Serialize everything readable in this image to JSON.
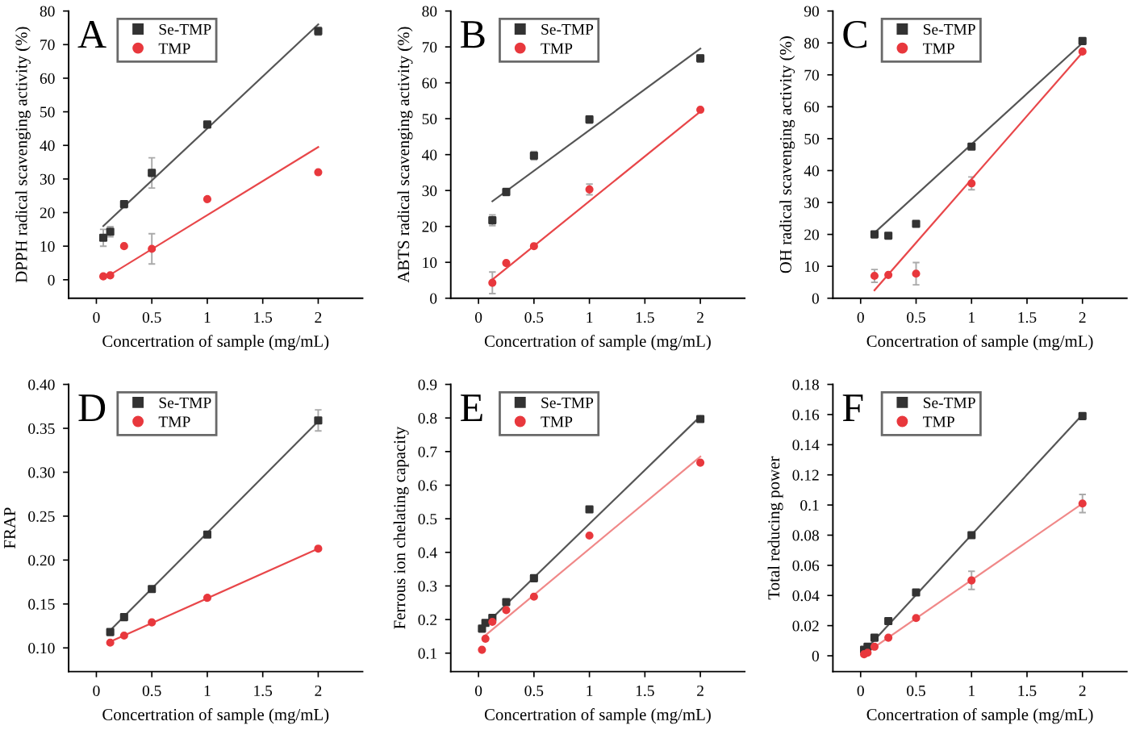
{
  "chart_data": [
    {
      "type": "scatter",
      "title": "A",
      "xlabel": "Concertration of sample (mg/mL)",
      "ylabel": "DPPH radical scavenging activity (%)",
      "xlim": [
        -0.25,
        2.4
      ],
      "xticks": [
        0,
        0.5,
        1,
        1.5,
        2
      ],
      "ylim": [
        -5.5,
        80
      ],
      "yticks": [
        0,
        10,
        20,
        30,
        40,
        50,
        60,
        70,
        80
      ],
      "legend": "top left",
      "grid": false,
      "series": [
        {
          "name": "Se-TMP",
          "marker": "square",
          "color": "#333333",
          "x": [
            0.0625,
            0.125,
            0.25,
            0.5,
            1,
            2
          ],
          "values": [
            12.5,
            14.3,
            22.5,
            31.8,
            46.2,
            74
          ],
          "errors": [
            2.5,
            1.5,
            1,
            4.5,
            null,
            1.2
          ]
        },
        {
          "name": "TMP",
          "marker": "circle",
          "color": "#e8383d",
          "x": [
            0.0625,
            0.125,
            0.25,
            0.5,
            1,
            2
          ],
          "values": [
            1,
            1.3,
            10,
            9.2,
            24,
            32
          ],
          "errors": [
            null,
            null,
            null,
            4.5,
            null,
            null
          ]
        },
        {
          "type": "line",
          "marker": "none",
          "color": "#555555",
          "x": [
            0.0625,
            2
          ],
          "values": [
            16,
            76
          ]
        },
        {
          "type": "line",
          "marker": "none",
          "color": "#e8474a",
          "x": [
            0.125,
            2
          ],
          "values": [
            1.5,
            39.5
          ]
        }
      ]
    },
    {
      "type": "scatter",
      "title": "B",
      "xlabel": "Concertration of sample (mg/mL)",
      "ylabel": "ABTS radical scavenging activity (%)",
      "xlim": [
        -0.25,
        2.4
      ],
      "xticks": [
        0,
        0.5,
        1,
        1.5,
        2
      ],
      "ylim": [
        0,
        80
      ],
      "yticks": [
        0,
        10,
        20,
        30,
        40,
        50,
        60,
        70,
        80
      ],
      "legend": "top left",
      "grid": false,
      "series": [
        {
          "name": "Se-TMP",
          "marker": "square",
          "color": "#333333",
          "x": [
            0.125,
            0.25,
            0.5,
            1,
            2
          ],
          "values": [
            21.7,
            29.6,
            39.7,
            49.8,
            66.8
          ],
          "errors": [
            1.5,
            1,
            1.2,
            1,
            1
          ]
        },
        {
          "name": "TMP",
          "marker": "circle",
          "color": "#e8383d",
          "x": [
            0.125,
            0.25,
            0.5,
            1,
            2
          ],
          "values": [
            4.3,
            9.8,
            14.5,
            30.3,
            52.5
          ],
          "errors": [
            3,
            null,
            null,
            1.5,
            null
          ]
        },
        {
          "type": "line",
          "marker": "none",
          "color": "#555555",
          "x": [
            0.125,
            2
          ],
          "values": [
            27,
            69.5
          ]
        },
        {
          "type": "line",
          "marker": "none",
          "color": "#e8474a",
          "x": [
            0.125,
            2
          ],
          "values": [
            5.2,
            52
          ]
        }
      ]
    },
    {
      "type": "scatter",
      "title": "C",
      "xlabel": "Concertration of sample (mg/mL)",
      "ylabel": "OH radical scavenging activity (%)",
      "xlim": [
        -0.25,
        2.4
      ],
      "xticks": [
        0,
        0.5,
        1,
        1.5,
        2
      ],
      "ylim": [
        0,
        90
      ],
      "yticks": [
        0,
        10,
        20,
        30,
        40,
        50,
        60,
        70,
        80,
        90
      ],
      "legend": "top left",
      "grid": false,
      "series": [
        {
          "name": "Se-TMP",
          "marker": "square",
          "color": "#333333",
          "x": [
            0.125,
            0.25,
            0.5,
            1,
            2
          ],
          "values": [
            20,
            19.6,
            23.3,
            47.5,
            80.6
          ]
        },
        {
          "name": "TMP",
          "marker": "circle",
          "color": "#e8383d",
          "x": [
            0.125,
            0.25,
            0.5,
            1,
            2
          ],
          "values": [
            7,
            7.3,
            7.7,
            36,
            77.3
          ],
          "errors": [
            2,
            null,
            3.5,
            2,
            null
          ]
        },
        {
          "type": "line",
          "marker": "none",
          "color": "#555555",
          "x": [
            0.125,
            2
          ],
          "values": [
            20.5,
            80
          ]
        },
        {
          "type": "line",
          "marker": "none",
          "color": "#e8474a",
          "x": [
            0.125,
            2
          ],
          "values": [
            2.5,
            77
          ]
        }
      ]
    },
    {
      "type": "scatter",
      "title": "D",
      "xlabel": "Concertration of sample (mg/mL)",
      "ylabel": "FRAP",
      "xlim": [
        -0.25,
        2.4
      ],
      "xticks": [
        0,
        0.5,
        1,
        1.5,
        2
      ],
      "ylim": [
        0.073,
        0.4
      ],
      "yticks": [
        {
          "value": 0.1,
          "label": "0.10"
        },
        {
          "value": 0.15,
          "label": "0.15"
        },
        {
          "value": 0.2,
          "label": "0.20"
        },
        {
          "value": 0.25,
          "label": "0.25"
        },
        {
          "value": 0.3,
          "label": "0.30"
        },
        {
          "value": 0.35,
          "label": "0.35"
        },
        {
          "value": 0.4,
          "label": "0.40"
        }
      ],
      "legend": "top left",
      "grid": false,
      "series": [
        {
          "name": "Se-TMP",
          "marker": "square",
          "color": "#333333",
          "x": [
            0.125,
            0.25,
            0.5,
            1,
            2
          ],
          "values": [
            0.118,
            0.135,
            0.167,
            0.229,
            0.359
          ],
          "errors": [
            null,
            null,
            null,
            null,
            0.012
          ]
        },
        {
          "name": "TMP",
          "marker": "circle",
          "color": "#e8383d",
          "x": [
            0.125,
            0.25,
            0.5,
            1,
            2
          ],
          "values": [
            0.106,
            0.114,
            0.129,
            0.157,
            0.213
          ]
        },
        {
          "type": "line",
          "marker": "none",
          "color": "#555555",
          "x": [
            0.125,
            2
          ],
          "values": [
            0.12,
            0.358
          ]
        },
        {
          "type": "line",
          "marker": "none",
          "color": "#e8474a",
          "x": [
            0.125,
            2
          ],
          "values": [
            0.107,
            0.213
          ]
        }
      ]
    },
    {
      "type": "scatter",
      "title": "E",
      "xlabel": "Concertration of sample (mg/mL)",
      "ylabel": "Ferrous ion chelating capacity",
      "xlim": [
        -0.25,
        2.4
      ],
      "xticks": [
        0,
        0.5,
        1,
        1.5,
        2
      ],
      "ylim": [
        0.045,
        0.9
      ],
      "yticks": [
        0.1,
        0.2,
        0.3,
        0.4,
        0.5,
        0.6,
        0.7,
        0.8,
        0.9
      ],
      "legend": "top left",
      "grid": false,
      "series": [
        {
          "name": "Se-TMP",
          "marker": "square",
          "color": "#333333",
          "x": [
            0.03125,
            0.0625,
            0.125,
            0.25,
            0.5,
            1,
            2
          ],
          "values": [
            0.173,
            0.19,
            0.205,
            0.252,
            0.323,
            0.528,
            0.797
          ]
        },
        {
          "name": "TMP",
          "marker": "circle",
          "color": "#e8383d",
          "x": [
            0.03125,
            0.0625,
            0.125,
            0.25,
            0.5,
            1,
            2
          ],
          "values": [
            0.11,
            0.143,
            0.193,
            0.228,
            0.268,
            0.45,
            0.667
          ]
        },
        {
          "type": "line",
          "marker": "none",
          "color": "#555555",
          "x": [
            0.03125,
            2
          ],
          "values": [
            0.175,
            0.805
          ]
        },
        {
          "type": "line",
          "marker": "none",
          "color": "#f08888",
          "x": [
            0.0625,
            2
          ],
          "values": [
            0.153,
            0.685
          ]
        }
      ]
    },
    {
      "type": "scatter",
      "title": "F",
      "xlabel": "Concertration of sample (mg/mL)",
      "ylabel": "Total reducing power",
      "xlim": [
        -0.25,
        2.4
      ],
      "xticks": [
        0,
        0.5,
        1,
        1.5,
        2
      ],
      "ylim": [
        -0.0105,
        0.18
      ],
      "yticks": [
        0,
        0.02,
        0.04,
        0.06,
        0.08,
        0.1,
        0.12,
        0.14,
        0.16,
        0.18
      ],
      "legend": "top left",
      "grid": false,
      "series": [
        {
          "name": "Se-TMP",
          "marker": "square",
          "color": "#333333",
          "x": [
            0.03125,
            0.0625,
            0.125,
            0.25,
            0.5,
            1,
            2
          ],
          "values": [
            0.004,
            0.006,
            0.012,
            0.023,
            0.042,
            0.08,
            0.159
          ]
        },
        {
          "name": "TMP",
          "marker": "circle",
          "color": "#e8383d",
          "x": [
            0.03125,
            0.0625,
            0.125,
            0.25,
            0.5,
            1,
            2
          ],
          "values": [
            0.001,
            0.002,
            0.006,
            0.012,
            0.025,
            0.05,
            0.101
          ],
          "errors": [
            null,
            null,
            null,
            null,
            null,
            0.006,
            0.006
          ]
        },
        {
          "type": "line",
          "marker": "none",
          "color": "#555555",
          "x": [
            0.03125,
            2
          ],
          "values": [
            0.003,
            0.16
          ]
        },
        {
          "type": "line",
          "marker": "none",
          "color": "#f08888",
          "x": [
            0.03125,
            2
          ],
          "values": [
            0.001,
            0.101
          ]
        }
      ]
    }
  ]
}
